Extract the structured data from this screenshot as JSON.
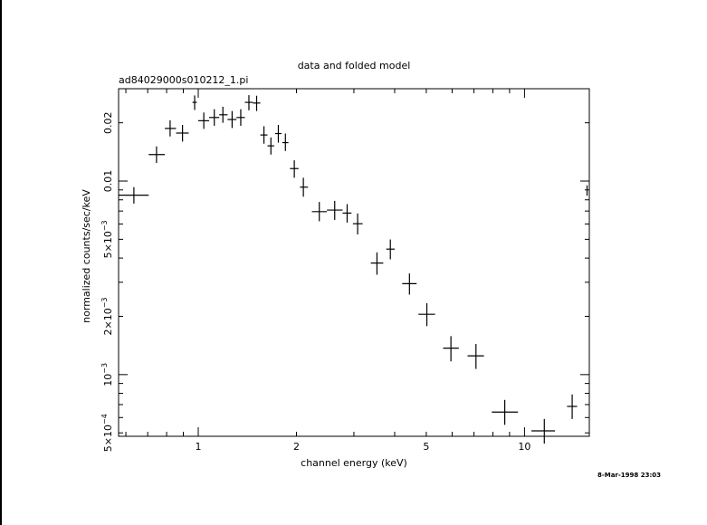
{
  "chart_data": {
    "type": "scatter",
    "title": "data and folded model",
    "subtitle": "ad84029000s010212_1.pi",
    "xlabel": "channel energy (keV)",
    "ylabel": "normalized counts/sec/keV",
    "xscale": "log",
    "yscale": "log",
    "xlim": [
      0.57,
      15.8
    ],
    "ylim": [
      0.00048,
      0.03
    ],
    "grid": false,
    "x_ticks": [
      {
        "value": 1,
        "label": "1"
      },
      {
        "value": 2,
        "label": "2"
      },
      {
        "value": 5,
        "label": "5"
      },
      {
        "value": 10,
        "label": "10"
      }
    ],
    "y_ticks": [
      {
        "value": 0.0005,
        "base": "5×10",
        "exp": "−4"
      },
      {
        "value": 0.001,
        "base": "10",
        "exp": "−3"
      },
      {
        "value": 0.002,
        "base": "2×10",
        "exp": "−3"
      },
      {
        "value": 0.005,
        "base": "5×10",
        "exp": "−3"
      },
      {
        "value": 0.01,
        "base": "0.01",
        "exp": ""
      },
      {
        "value": 0.02,
        "base": "0.02",
        "exp": ""
      }
    ],
    "series": [
      {
        "points": [
          {
            "x": 0.635,
            "y": 0.00845,
            "xlo": 0.57,
            "xhi": 0.705,
            "ylo": 0.00765,
            "yhi": 0.0093
          },
          {
            "x": 0.745,
            "y": 0.0137,
            "xlo": 0.705,
            "xhi": 0.79,
            "ylo": 0.0124,
            "yhi": 0.0151
          },
          {
            "x": 0.82,
            "y": 0.0187,
            "xlo": 0.79,
            "xhi": 0.855,
            "ylo": 0.017,
            "yhi": 0.0206
          },
          {
            "x": 0.895,
            "y": 0.0177,
            "xlo": 0.855,
            "xhi": 0.935,
            "ylo": 0.016,
            "yhi": 0.0195
          },
          {
            "x": 0.975,
            "y": 0.0255,
            "xlo": 0.96,
            "xhi": 0.99,
            "ylo": 0.0233,
            "yhi": 0.0277
          },
          {
            "x": 1.04,
            "y": 0.0205,
            "xlo": 1.0,
            "xhi": 1.08,
            "ylo": 0.0186,
            "yhi": 0.0226
          },
          {
            "x": 1.12,
            "y": 0.0213,
            "xlo": 1.08,
            "xhi": 1.16,
            "ylo": 0.0193,
            "yhi": 0.0235
          },
          {
            "x": 1.19,
            "y": 0.022,
            "xlo": 1.16,
            "xhi": 1.23,
            "ylo": 0.02,
            "yhi": 0.0242
          },
          {
            "x": 1.27,
            "y": 0.0208,
            "xlo": 1.23,
            "xhi": 1.31,
            "ylo": 0.0188,
            "yhi": 0.023
          },
          {
            "x": 1.35,
            "y": 0.0213,
            "xlo": 1.31,
            "xhi": 1.39,
            "ylo": 0.0193,
            "yhi": 0.0235
          },
          {
            "x": 1.43,
            "y": 0.0255,
            "xlo": 1.39,
            "xhi": 1.47,
            "ylo": 0.0232,
            "yhi": 0.0278
          },
          {
            "x": 1.51,
            "y": 0.0253,
            "xlo": 1.47,
            "xhi": 1.55,
            "ylo": 0.023,
            "yhi": 0.0276
          },
          {
            "x": 1.59,
            "y": 0.0173,
            "xlo": 1.55,
            "xhi": 1.63,
            "ylo": 0.0156,
            "yhi": 0.0192
          },
          {
            "x": 1.67,
            "y": 0.0152,
            "xlo": 1.63,
            "xhi": 1.71,
            "ylo": 0.0137,
            "yhi": 0.0168
          },
          {
            "x": 1.76,
            "y": 0.0176,
            "xlo": 1.72,
            "xhi": 1.8,
            "ylo": 0.0158,
            "yhi": 0.0195
          },
          {
            "x": 1.85,
            "y": 0.0158,
            "xlo": 1.81,
            "xhi": 1.89,
            "ylo": 0.0143,
            "yhi": 0.0176
          },
          {
            "x": 1.97,
            "y": 0.0116,
            "xlo": 1.91,
            "xhi": 2.03,
            "ylo": 0.0104,
            "yhi": 0.0128
          },
          {
            "x": 2.1,
            "y": 0.0093,
            "xlo": 2.05,
            "xhi": 2.17,
            "ylo": 0.0083,
            "yhi": 0.0104
          },
          {
            "x": 2.35,
            "y": 0.00695,
            "xlo": 2.23,
            "xhi": 2.48,
            "ylo": 0.0062,
            "yhi": 0.0078
          },
          {
            "x": 2.62,
            "y": 0.00708,
            "xlo": 2.48,
            "xhi": 2.77,
            "ylo": 0.0063,
            "yhi": 0.0079
          },
          {
            "x": 2.86,
            "y": 0.00683,
            "xlo": 2.77,
            "xhi": 2.95,
            "ylo": 0.0061,
            "yhi": 0.0076
          },
          {
            "x": 3.08,
            "y": 0.00602,
            "xlo": 2.98,
            "xhi": 3.19,
            "ylo": 0.0053,
            "yhi": 0.0068
          },
          {
            "x": 3.53,
            "y": 0.00377,
            "xlo": 3.38,
            "xhi": 3.69,
            "ylo": 0.00328,
            "yhi": 0.00428
          },
          {
            "x": 3.88,
            "y": 0.00445,
            "xlo": 3.77,
            "xhi": 4.0,
            "ylo": 0.00394,
            "yhi": 0.00499
          },
          {
            "x": 4.44,
            "y": 0.00295,
            "xlo": 4.22,
            "xhi": 4.67,
            "ylo": 0.00259,
            "yhi": 0.00333
          },
          {
            "x": 5.02,
            "y": 0.00205,
            "xlo": 4.73,
            "xhi": 5.32,
            "ylo": 0.00178,
            "yhi": 0.00234
          },
          {
            "x": 5.95,
            "y": 0.00137,
            "xlo": 5.63,
            "xhi": 6.29,
            "ylo": 0.00117,
            "yhi": 0.00158
          },
          {
            "x": 7.1,
            "y": 0.00125,
            "xlo": 6.69,
            "xhi": 7.51,
            "ylo": 0.00107,
            "yhi": 0.00144
          },
          {
            "x": 8.7,
            "y": 0.00064,
            "xlo": 7.94,
            "xhi": 9.55,
            "ylo": 0.00055,
            "yhi": 0.00074
          },
          {
            "x": 11.5,
            "y": 0.000512,
            "xlo": 10.5,
            "xhi": 12.4,
            "ylo": 0.00044,
            "yhi": 0.00059
          },
          {
            "x": 14.0,
            "y": 0.000685,
            "xlo": 13.5,
            "xhi": 14.5,
            "ylo": 0.00059,
            "yhi": 0.00079
          },
          {
            "x": 15.55,
            "y": 0.0089,
            "xlo": 15.5,
            "xhi": 15.6,
            "ylo": 0.0084,
            "yhi": 0.0095
          }
        ]
      }
    ]
  },
  "timestamp": "8-Mar-1998 23:03"
}
